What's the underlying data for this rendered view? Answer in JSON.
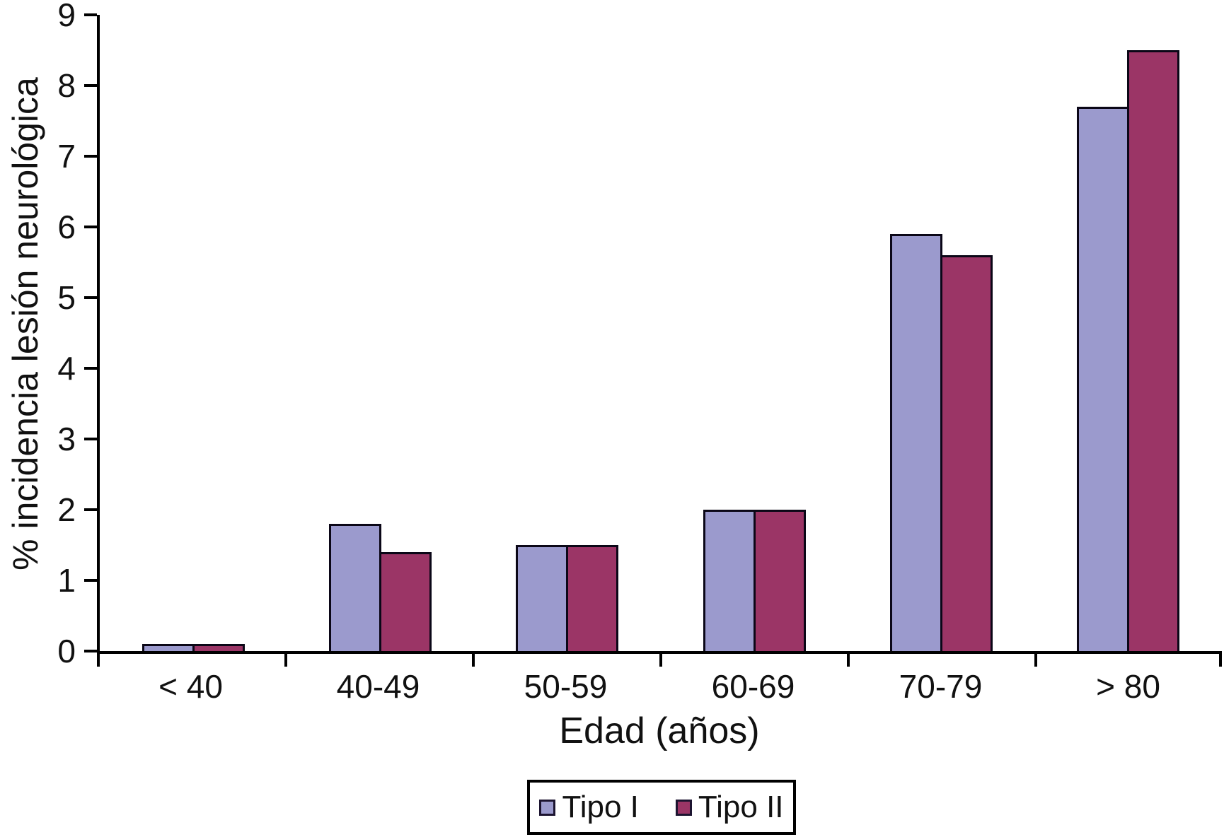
{
  "chart_data": {
    "type": "bar",
    "title": "",
    "categories": [
      "< 40",
      "40-49",
      "50-59",
      "60-69",
      "70-79",
      "> 80"
    ],
    "series": [
      {
        "name": "Tipo I",
        "color": "#9b9acd",
        "values": [
          0.1,
          1.8,
          1.5,
          2.0,
          5.9,
          7.7
        ]
      },
      {
        "name": "Tipo II",
        "color": "#9b3566",
        "values": [
          0.1,
          1.4,
          1.5,
          2.0,
          5.6,
          8.5
        ]
      }
    ],
    "xlabel": "Edad (años)",
    "ylabel": "% incidencia lesión neurológica",
    "ylim": [
      0,
      9
    ],
    "yticks": [
      0,
      1,
      2,
      3,
      4,
      5,
      6,
      7,
      8,
      9
    ],
    "grid": false,
    "legend_position": "bottom-center",
    "bar_outline_color": "#0b0717",
    "axis_color": "#000000"
  }
}
